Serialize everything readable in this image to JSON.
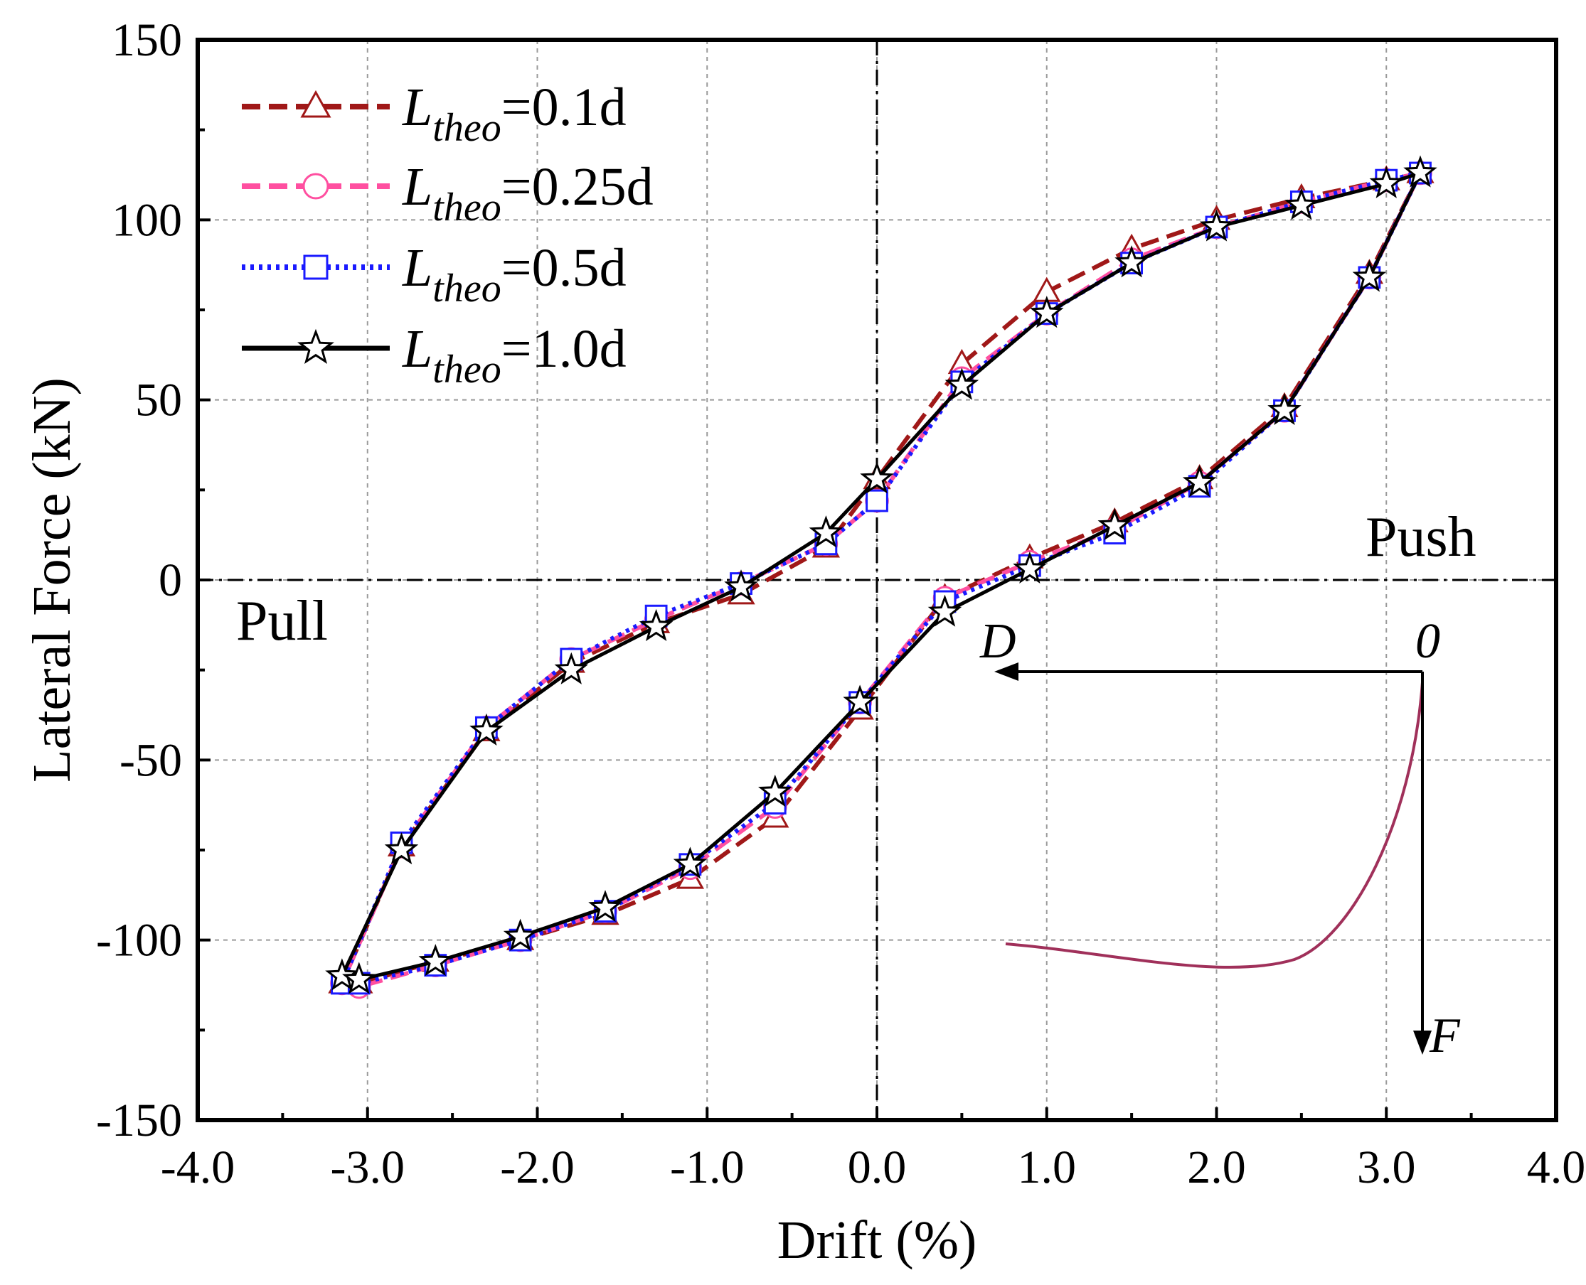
{
  "chart_data": {
    "type": "line",
    "xlabel": "Drift (%)",
    "ylabel": "Lateral Force (kN)",
    "xlim": [
      -4.0,
      4.0
    ],
    "ylim": [
      -150,
      150
    ],
    "xticks": [
      "-4.0",
      "-3.0",
      "-2.0",
      "-1.0",
      "0.0",
      "1.0",
      "2.0",
      "3.0",
      "4.0"
    ],
    "yticks": [
      "150",
      "100",
      "50",
      "0",
      "-50",
      "-100",
      "-150"
    ],
    "grid": true,
    "legend_position": "top-left",
    "annotations": {
      "push": "Push",
      "pull": "Pull",
      "inset_origin": "0",
      "inset_d": "D",
      "inset_f": "F"
    },
    "series": [
      {
        "name": "L_theo=0.1d",
        "label_main": "L",
        "label_sub": "theo",
        "label_value": "=0.1d",
        "color": "#a01818",
        "marker": "triangle",
        "dash": "dashed",
        "points": [
          [
            3.2,
            113
          ],
          [
            3.0,
            111
          ],
          [
            2.5,
            106
          ],
          [
            2.0,
            100
          ],
          [
            1.5,
            92
          ],
          [
            1.0,
            80
          ],
          [
            0.5,
            60
          ],
          [
            0.0,
            28
          ],
          [
            -0.3,
            9
          ],
          [
            -0.8,
            -4
          ],
          [
            -1.3,
            -12
          ],
          [
            -1.8,
            -23
          ],
          [
            -2.3,
            -42
          ],
          [
            -2.8,
            -74
          ],
          [
            -3.15,
            -112
          ],
          [
            -3.05,
            -112
          ],
          [
            -2.6,
            -106
          ],
          [
            -2.1,
            -100
          ],
          [
            -1.6,
            -93
          ],
          [
            -1.1,
            -83
          ],
          [
            -0.6,
            -66
          ],
          [
            -0.1,
            -36
          ],
          [
            0.4,
            -5
          ],
          [
            0.9,
            6
          ],
          [
            1.4,
            16
          ],
          [
            1.9,
            28
          ],
          [
            2.4,
            48
          ],
          [
            2.9,
            85
          ],
          [
            3.2,
            113
          ]
        ]
      },
      {
        "name": "L_theo=0.25d",
        "label_main": "L",
        "label_sub": "theo",
        "label_value": "=0.25d",
        "color": "#ff4fa0",
        "marker": "circle",
        "dash": "dashed",
        "points": [
          [
            3.2,
            113
          ],
          [
            3.0,
            111
          ],
          [
            2.5,
            105
          ],
          [
            2.0,
            98
          ],
          [
            1.5,
            89
          ],
          [
            1.0,
            74
          ],
          [
            0.5,
            56
          ],
          [
            0.0,
            22
          ],
          [
            -0.3,
            10
          ],
          [
            -0.8,
            -1
          ],
          [
            -1.3,
            -11
          ],
          [
            -1.8,
            -22
          ],
          [
            -2.3,
            -41
          ],
          [
            -2.8,
            -74
          ],
          [
            -3.15,
            -112
          ],
          [
            -3.05,
            -113
          ],
          [
            -2.6,
            -107
          ],
          [
            -2.1,
            -100
          ],
          [
            -1.6,
            -92
          ],
          [
            -1.1,
            -80
          ],
          [
            -0.6,
            -63
          ],
          [
            -0.1,
            -34
          ],
          [
            0.4,
            -5
          ],
          [
            0.9,
            5
          ],
          [
            1.4,
            14
          ],
          [
            1.9,
            27
          ],
          [
            2.4,
            47
          ],
          [
            2.9,
            84
          ],
          [
            3.2,
            113
          ]
        ]
      },
      {
        "name": "L_theo=0.5d",
        "label_main": "L",
        "label_sub": "theo",
        "label_value": "=0.5d",
        "color": "#1a1aff",
        "marker": "square",
        "dash": "dotted",
        "points": [
          [
            3.2,
            113
          ],
          [
            3.0,
            111
          ],
          [
            2.5,
            105
          ],
          [
            2.0,
            98
          ],
          [
            1.5,
            88
          ],
          [
            1.0,
            74
          ],
          [
            0.5,
            55
          ],
          [
            0.0,
            22
          ],
          [
            -0.3,
            10
          ],
          [
            -0.8,
            -1
          ],
          [
            -1.3,
            -10
          ],
          [
            -1.8,
            -22
          ],
          [
            -2.3,
            -41
          ],
          [
            -2.8,
            -73
          ],
          [
            -3.15,
            -112
          ],
          [
            -3.05,
            -112
          ],
          [
            -2.6,
            -107
          ],
          [
            -2.1,
            -100
          ],
          [
            -1.6,
            -92
          ],
          [
            -1.1,
            -79
          ],
          [
            -0.6,
            -62
          ],
          [
            -0.1,
            -34
          ],
          [
            0.4,
            -6
          ],
          [
            0.9,
            4
          ],
          [
            1.4,
            13
          ],
          [
            1.9,
            26
          ],
          [
            2.4,
            47
          ],
          [
            2.9,
            84
          ],
          [
            3.2,
            113
          ]
        ]
      },
      {
        "name": "L_theo=1.0d",
        "label_main": "L",
        "label_sub": "theo",
        "label_value": "=1.0d",
        "color": "#000000",
        "marker": "star",
        "dash": "solid",
        "points": [
          [
            3.2,
            113
          ],
          [
            3.0,
            110
          ],
          [
            2.5,
            104
          ],
          [
            2.0,
            98
          ],
          [
            1.5,
            88
          ],
          [
            1.0,
            74
          ],
          [
            0.5,
            54
          ],
          [
            0.0,
            28
          ],
          [
            -0.3,
            13
          ],
          [
            -0.8,
            -2
          ],
          [
            -1.3,
            -13
          ],
          [
            -1.8,
            -25
          ],
          [
            -2.3,
            -42
          ],
          [
            -2.8,
            -75
          ],
          [
            -3.15,
            -110
          ],
          [
            -3.05,
            -111
          ],
          [
            -2.6,
            -106
          ],
          [
            -2.1,
            -99
          ],
          [
            -1.6,
            -91
          ],
          [
            -1.1,
            -79
          ],
          [
            -0.6,
            -59
          ],
          [
            -0.1,
            -34
          ],
          [
            0.4,
            -9
          ],
          [
            0.9,
            3
          ],
          [
            1.4,
            15
          ],
          [
            1.9,
            27
          ],
          [
            2.4,
            47
          ],
          [
            2.9,
            84
          ],
          [
            3.2,
            113
          ]
        ]
      }
    ]
  }
}
